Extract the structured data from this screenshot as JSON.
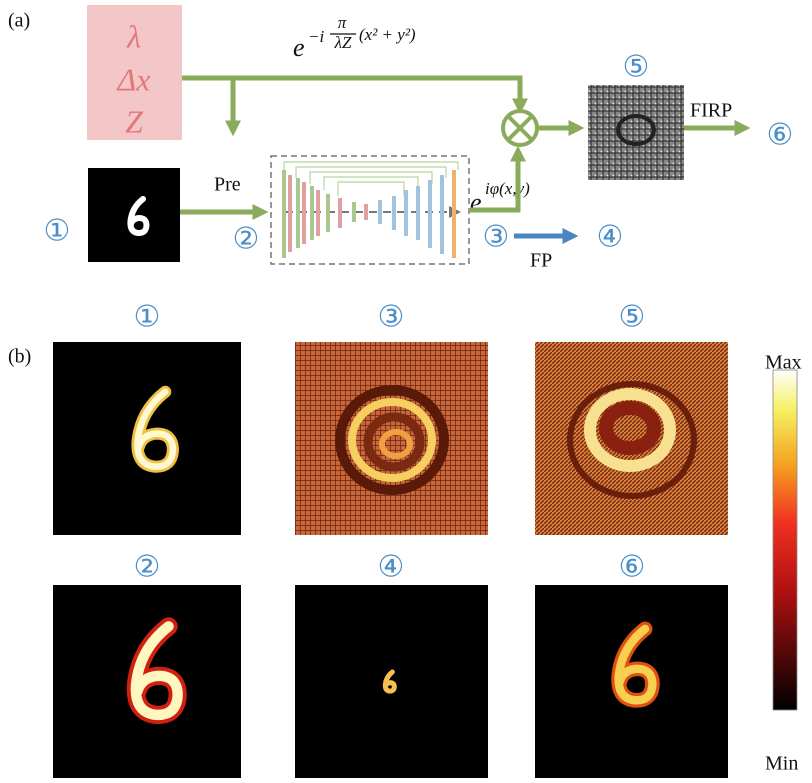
{
  "panel_a": {
    "label": "(a)",
    "parameters": [
      "λ",
      "Δx",
      "Z"
    ],
    "propagation_factor": {
      "base": "e",
      "exponent_prefix": "−i",
      "numerator": "π",
      "denominator": "λZ",
      "exponent_suffix": "(x² + y²)"
    },
    "phase_factor": {
      "base": "e",
      "exponent": "iφ(x,y)"
    },
    "steps": {
      "pre": "Pre",
      "fp": "FP",
      "firp": "FIRP"
    },
    "markers": [
      "①",
      "②",
      "③",
      "④",
      "⑤",
      "⑥"
    ]
  },
  "panel_b": {
    "label": "(b)",
    "colorbar": {
      "max_label": "Max",
      "min_label": "Min"
    }
  }
}
